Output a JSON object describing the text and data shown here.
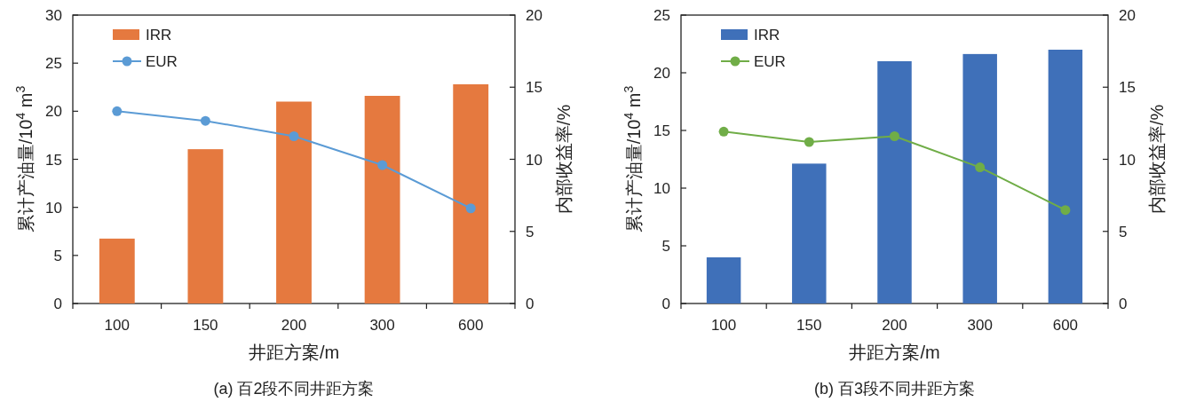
{
  "chart_data": [
    {
      "type": "bar",
      "title": "(a) 百2段不同井距方案",
      "xlabel": "井距方案/m",
      "ylabel": "累计产油量/10$^{4}$ m$^{3}$",
      "y2label": "内部收益率/%",
      "categories": [
        "100",
        "150",
        "200",
        "300",
        "600"
      ],
      "series": [
        {
          "name": "IRR",
          "axis": "y2",
          "color": "#e5793f",
          "values": [
            4.5,
            10.7,
            14.0,
            14.4,
            15.2
          ]
        },
        {
          "name": "EUR",
          "type": "line",
          "axis": "y",
          "color": "#5b9bd5",
          "marker": "circle",
          "values": [
            20.0,
            19.0,
            17.4,
            14.4,
            9.9
          ]
        }
      ],
      "ylim": [
        0,
        30
      ],
      "yticks": [
        0,
        5,
        10,
        15,
        20,
        25,
        30
      ],
      "y2lim": [
        0,
        20
      ],
      "y2ticks": [
        0,
        5,
        10,
        15,
        20
      ],
      "legend": "top left"
    },
    {
      "type": "bar",
      "title": "(b) 百3段不同井距方案",
      "xlabel": "井距方案/m",
      "ylabel": "累计产油量/10$^{4}$ m$^{3}$",
      "y2label": "内部收益率/%",
      "categories": [
        "100",
        "150",
        "200",
        "300",
        "600"
      ],
      "series": [
        {
          "name": "IRR",
          "axis": "y2",
          "color": "#3f70b9",
          "values": [
            3.2,
            9.7,
            16.8,
            17.3,
            17.6
          ]
        },
        {
          "name": "EUR",
          "type": "line",
          "axis": "y",
          "color": "#70ad47",
          "marker": "circle",
          "values": [
            14.9,
            14.0,
            14.5,
            11.8,
            8.1
          ]
        }
      ],
      "ylim": [
        0,
        25
      ],
      "yticks": [
        0,
        5,
        10,
        15,
        20,
        25
      ],
      "y2lim": [
        0,
        20
      ],
      "y2ticks": [
        0,
        5,
        10,
        15,
        20
      ],
      "legend": "top left"
    }
  ]
}
